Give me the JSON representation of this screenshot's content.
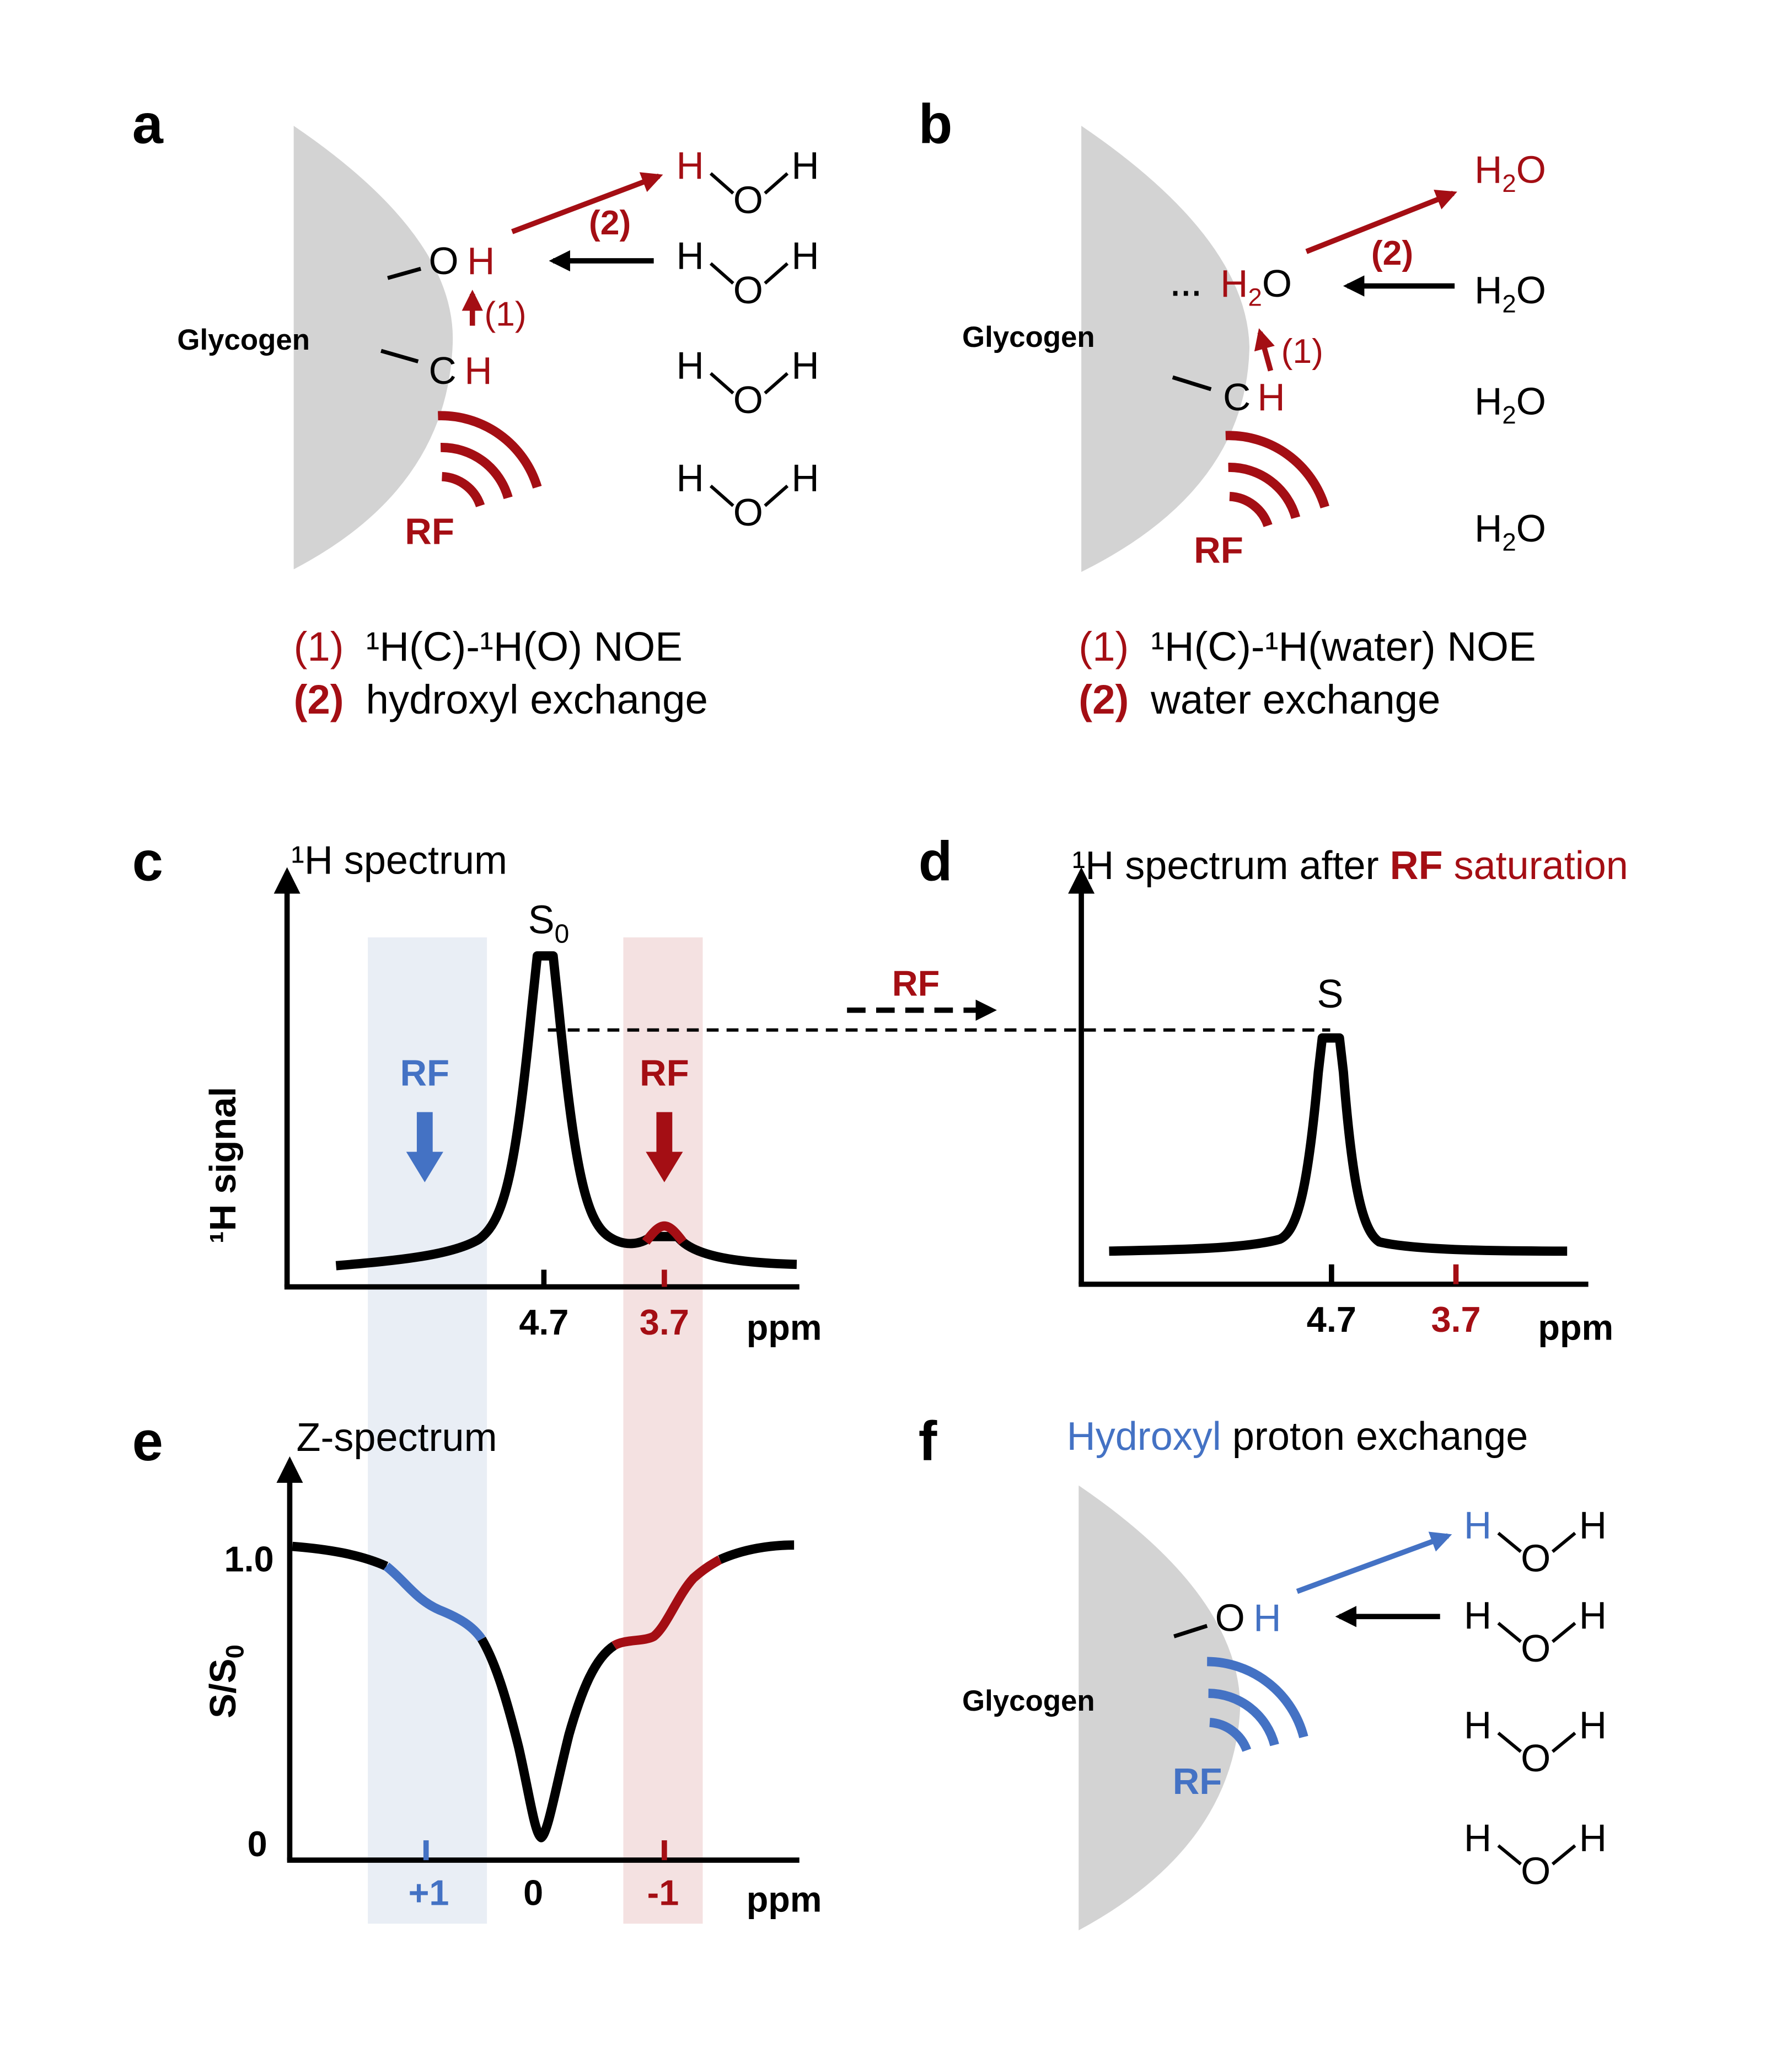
{
  "colors": {
    "red": "#A40E14",
    "blue": "#4472C4",
    "gray": "#D3D3D3",
    "black": "#000000",
    "blue_band": "#E9EEF5",
    "red_band": "#F4E1E1"
  },
  "panel_a": {
    "letter": "a",
    "glycogen_label": "Glycogen",
    "oh_o": "O",
    "oh_h": "H",
    "ch_c": "C",
    "ch_h": "H",
    "step1_tag": "(1)",
    "step2_tag": "(2)",
    "rf_label": "RF",
    "water": {
      "h": "H",
      "o": "O"
    },
    "caption1_num": "(1)",
    "caption1_text": "¹H(C)-¹H(O) NOE",
    "caption2_num": "(2)",
    "caption2_text": "hydroxyl exchange"
  },
  "panel_b": {
    "letter": "b",
    "glycogen_label": "Glycogen",
    "bound_water_h": "H",
    "bound_water_sub": "2",
    "bound_water_o": "O",
    "ch_c": "C",
    "ch_h": "H",
    "step1_tag": "(1)",
    "step2_tag": "(2)",
    "rf_label": "RF",
    "free_water": {
      "h": "H",
      "sub": "2",
      "o": "O"
    },
    "caption1_num": "(1)",
    "caption1_text": "¹H(C)-¹H(water) NOE",
    "caption2_num": "(2)",
    "caption2_text": "water exchange"
  },
  "panel_c": {
    "letter": "c",
    "title": "¹H spectrum",
    "ylabel": "¹H signal",
    "peak_label": "S",
    "peak_sub": "0",
    "rf_left": "RF",
    "rf_right": "RF",
    "xtick_main": "4.7",
    "xtick_red": "3.7",
    "xunit": "ppm"
  },
  "transfer_rf_label": "RF",
  "panel_d": {
    "letter": "d",
    "title_prefix": "¹H spectrum after ",
    "title_rf": "RF",
    "title_suffix": " saturation",
    "peak_label": "S",
    "xtick_main": "4.7",
    "xtick_red": "3.7",
    "xunit": "ppm"
  },
  "panel_e": {
    "letter": "e",
    "title": "Z-spectrum",
    "ylabel_main": "S/S",
    "ylabel_sub": "0",
    "ytick_top": "1.0",
    "ytick_bottom": "0",
    "xtick_blue": "+1",
    "xtick_zero": "0",
    "xtick_red": "-1",
    "xunit": "ppm"
  },
  "panel_f": {
    "letter": "f",
    "title_blue": "Hydroxyl",
    "title_rest": " proton exchange",
    "glycogen_label": "Glycogen",
    "oh_o": "O",
    "oh_h": "H",
    "rf_label": "RF",
    "water": {
      "h": "H",
      "o": "O"
    }
  },
  "spectra_data": {
    "type": "line",
    "panel_c_peaks": [
      {
        "position_ppm": 4.7,
        "relative_height": 1.0
      },
      {
        "position_ppm": 3.7,
        "relative_height": 0.07
      }
    ],
    "panel_d_peaks": [
      {
        "position_ppm": 4.7,
        "relative_height": 0.75
      }
    ],
    "z_spectrum": {
      "x_ppm": [
        2.2,
        1.5,
        1.0,
        0.6,
        0.3,
        0,
        -0.3,
        -0.6,
        -0.8,
        -1.0,
        -1.2,
        -1.5,
        -2.2
      ],
      "s_over_s0": [
        0.98,
        0.93,
        0.8,
        0.66,
        0.37,
        0.04,
        0.37,
        0.64,
        0.71,
        0.72,
        0.78,
        0.93,
        0.98
      ]
    }
  }
}
